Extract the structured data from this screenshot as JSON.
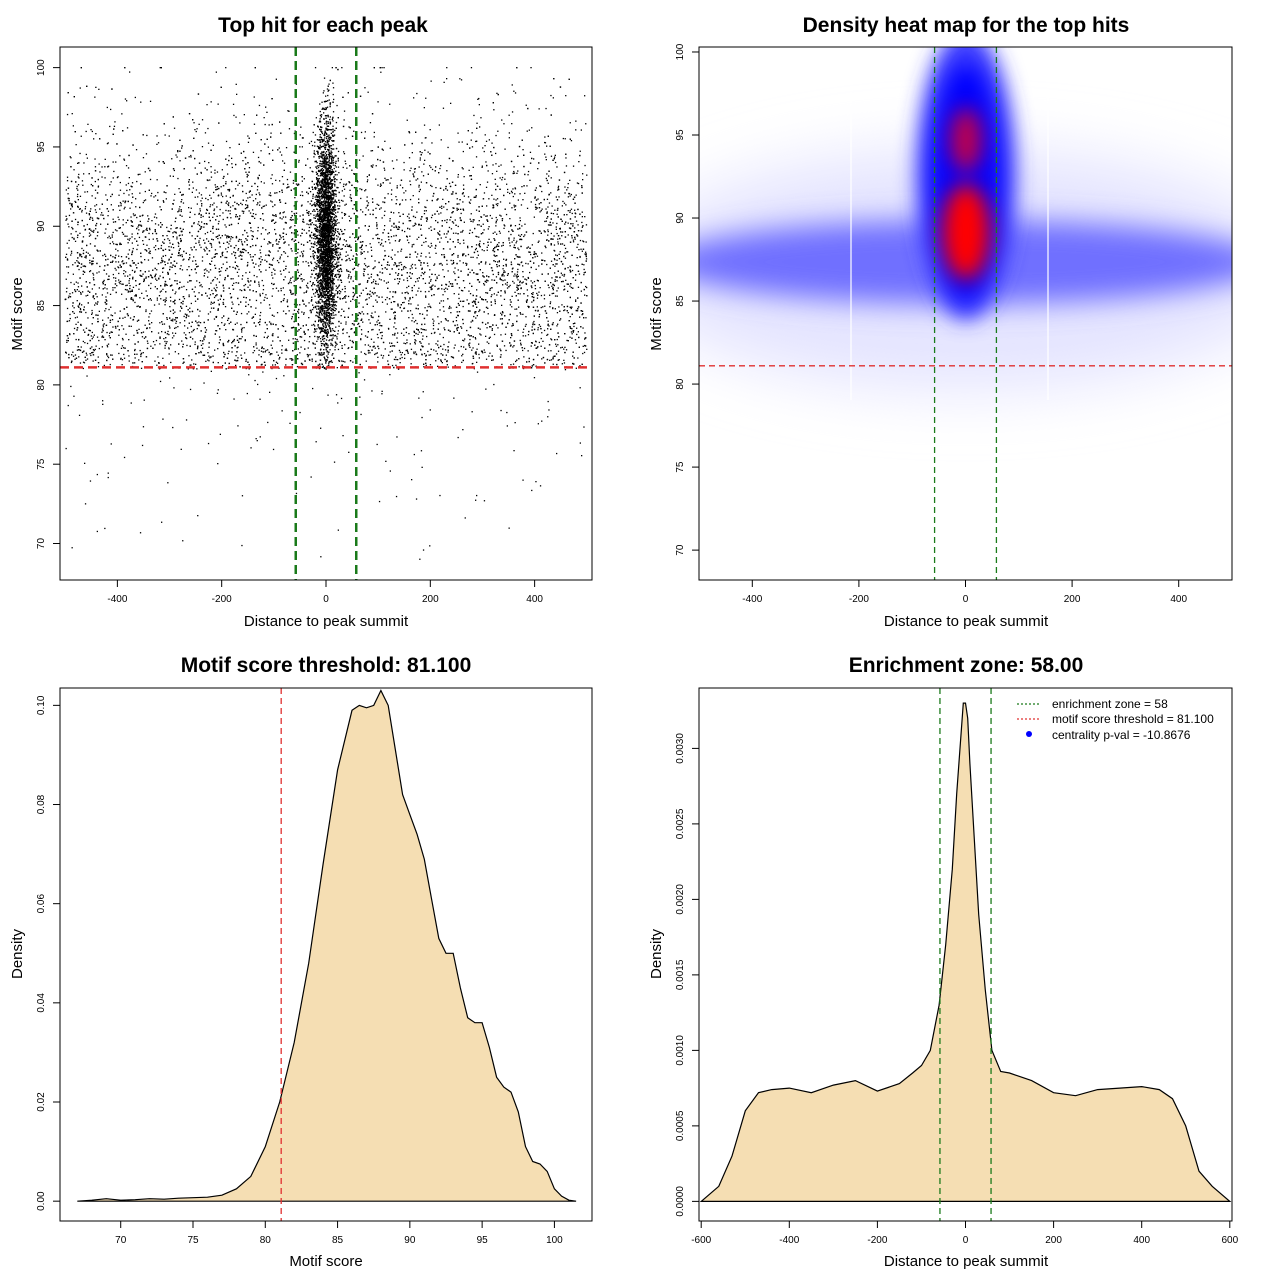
{
  "chart_data": [
    {
      "type": "scatter",
      "title": "Top hit for each peak",
      "xlabel": "Distance to peak summit",
      "ylabel": "Motif score",
      "xlim": [
        -510,
        510
      ],
      "ylim": [
        67.7,
        101.3
      ],
      "xticks": [
        -400,
        -200,
        0,
        200,
        400
      ],
      "xtick_labels": [
        "-400",
        "-200",
        "0",
        "200",
        "400"
      ],
      "yticks": [
        70,
        75,
        80,
        85,
        90,
        95,
        100
      ],
      "ytick_labels": [
        "70",
        "75",
        "80",
        "85",
        "90",
        "95",
        "100"
      ],
      "hlines": [
        {
          "y": 81.1,
          "color": "#e03030",
          "style": "dashed"
        }
      ],
      "vlines": [
        {
          "x": -58,
          "color": "#1a7a1a",
          "style": "dashed"
        },
        {
          "x": 58,
          "color": "#1a7a1a",
          "style": "dashed"
        }
      ],
      "point_distribution": {
        "background": {
          "count": 7000,
          "x_range": [
            -500,
            500
          ],
          "score_mean": 87.5,
          "score_sd": 4.5
        },
        "central": {
          "count": 3600,
          "x_mean": 0,
          "x_sd": 10,
          "score_mean": 89.5,
          "score_sd": 3.5
        },
        "sparse_tail": {
          "count": 140,
          "score_range": [
            68,
            81
          ]
        }
      }
    },
    {
      "type": "heatmap",
      "title": "Density heat map for the top hits",
      "xlabel": "Distance to peak summit",
      "ylabel": "Motif score",
      "xlim": [
        -500,
        500
      ],
      "ylim": [
        68.2,
        100.3
      ],
      "xticks": [
        -400,
        -200,
        0,
        200,
        400
      ],
      "xtick_labels": [
        "-400",
        "-200",
        "0",
        "200",
        "400"
      ],
      "yticks": [
        70,
        75,
        80,
        85,
        90,
        95,
        100
      ],
      "ytick_labels": [
        "70",
        "75",
        "80",
        "85",
        "90",
        "95",
        "100"
      ],
      "hlines": [
        {
          "y": 81.1,
          "color": "#e03030",
          "style": "dashed"
        }
      ],
      "vlines": [
        {
          "x": -58,
          "color": "#1a7a1a",
          "style": "dashed"
        },
        {
          "x": 58,
          "color": "#1a7a1a",
          "style": "dashed"
        }
      ],
      "colorscale": [
        "#ffffff",
        "#0000ff",
        "#ff0000"
      ],
      "density_peak": {
        "x": 5,
        "y": 89
      }
    },
    {
      "type": "area",
      "title": "Motif score threshold: 81.100",
      "xlabel": "Motif score",
      "ylabel": "Density",
      "xlim": [
        65.8,
        102.6
      ],
      "ylim": [
        -0.004,
        0.1035
      ],
      "xticks": [
        70,
        75,
        80,
        85,
        90,
        95,
        100
      ],
      "xtick_labels": [
        "70",
        "75",
        "80",
        "85",
        "90",
        "95",
        "100"
      ],
      "yticks": [
        0,
        0.02,
        0.04,
        0.06,
        0.08,
        0.1
      ],
      "ytick_labels": [
        "0.00",
        "0.02",
        "0.04",
        "0.06",
        "0.08",
        "0.10"
      ],
      "fill_color": "#f5deb3",
      "vlines": [
        {
          "x": 81.1,
          "color": "#e03030",
          "style": "dashed"
        }
      ],
      "x": [
        67,
        68,
        69,
        70,
        71,
        72,
        73,
        74,
        75,
        76,
        77,
        78,
        79,
        80,
        81,
        82,
        83,
        84,
        85,
        86,
        86.5,
        87,
        87.5,
        88,
        88.5,
        89,
        89.5,
        90,
        90.5,
        91,
        91.5,
        92,
        92.5,
        93,
        93.5,
        94,
        94.5,
        95,
        95.5,
        96,
        96.5,
        97,
        97.5,
        98,
        98.5,
        99,
        99.5,
        100,
        100.5,
        101,
        101.5
      ],
      "y": [
        0.0,
        0.0002,
        0.0005,
        0.0002,
        0.0003,
        0.0005,
        0.0004,
        0.0006,
        0.0007,
        0.0008,
        0.0012,
        0.0025,
        0.005,
        0.011,
        0.02,
        0.032,
        0.048,
        0.068,
        0.087,
        0.099,
        0.1,
        0.0995,
        0.1,
        0.103,
        0.1,
        0.091,
        0.082,
        0.078,
        0.074,
        0.069,
        0.061,
        0.053,
        0.05,
        0.05,
        0.043,
        0.037,
        0.036,
        0.036,
        0.031,
        0.025,
        0.023,
        0.022,
        0.018,
        0.011,
        0.008,
        0.0075,
        0.006,
        0.0025,
        0.001,
        0.0002,
        0.0
      ]
    },
    {
      "type": "area",
      "title": "Enrichment zone: 58.00",
      "xlabel": "Distance to peak summit",
      "ylabel": "Density",
      "xlim": [
        -605,
        605
      ],
      "ylim": [
        -0.00013,
        0.0034
      ],
      "xticks": [
        -600,
        -400,
        -200,
        0,
        200,
        400,
        600
      ],
      "xtick_labels": [
        "-600",
        "-400",
        "-200",
        "0",
        "200",
        "400",
        "600"
      ],
      "yticks": [
        0,
        0.0005,
        0.001,
        0.0015,
        0.002,
        0.0025,
        0.003
      ],
      "ytick_labels": [
        "0.0000",
        "0.0005",
        "0.0010",
        "0.0015",
        "0.0020",
        "0.0025",
        "0.0030"
      ],
      "fill_color": "#f5deb3",
      "vlines": [
        {
          "x": -58,
          "color": "#1a7a1a",
          "style": "dashed"
        },
        {
          "x": 58,
          "color": "#1a7a1a",
          "style": "dashed"
        }
      ],
      "x": [
        -600,
        -560,
        -530,
        -500,
        -470,
        -440,
        -400,
        -350,
        -300,
        -250,
        -200,
        -150,
        -120,
        -100,
        -80,
        -60,
        -45,
        -30,
        -20,
        -10,
        -5,
        0,
        5,
        10,
        20,
        30,
        45,
        60,
        80,
        100,
        150,
        200,
        250,
        300,
        350,
        400,
        440,
        470,
        500,
        530,
        560,
        600
      ],
      "y": [
        0.0,
        0.0001,
        0.0003,
        0.0006,
        0.00072,
        0.00074,
        0.00075,
        0.00072,
        0.00077,
        0.0008,
        0.00073,
        0.00078,
        0.00085,
        0.0009,
        0.001,
        0.0013,
        0.0017,
        0.0022,
        0.0027,
        0.0031,
        0.0033,
        0.0033,
        0.0032,
        0.0029,
        0.0024,
        0.0019,
        0.0014,
        0.001,
        0.00086,
        0.00085,
        0.0008,
        0.00072,
        0.0007,
        0.00074,
        0.00075,
        0.00076,
        0.00074,
        0.00068,
        0.0005,
        0.0002,
        0.0001,
        0.0
      ],
      "legend": {
        "placement": "top-right",
        "entries": [
          {
            "label": "enrichment zone = 58",
            "color": "#1a7a1a",
            "style": "dotted-line"
          },
          {
            "label": "motif score threshold = 81.100",
            "color": "#e03030",
            "style": "dotted-line"
          },
          {
            "label": "centrality p-val = -10.8676",
            "color": "#0000ff",
            "style": "point"
          }
        ]
      }
    }
  ]
}
